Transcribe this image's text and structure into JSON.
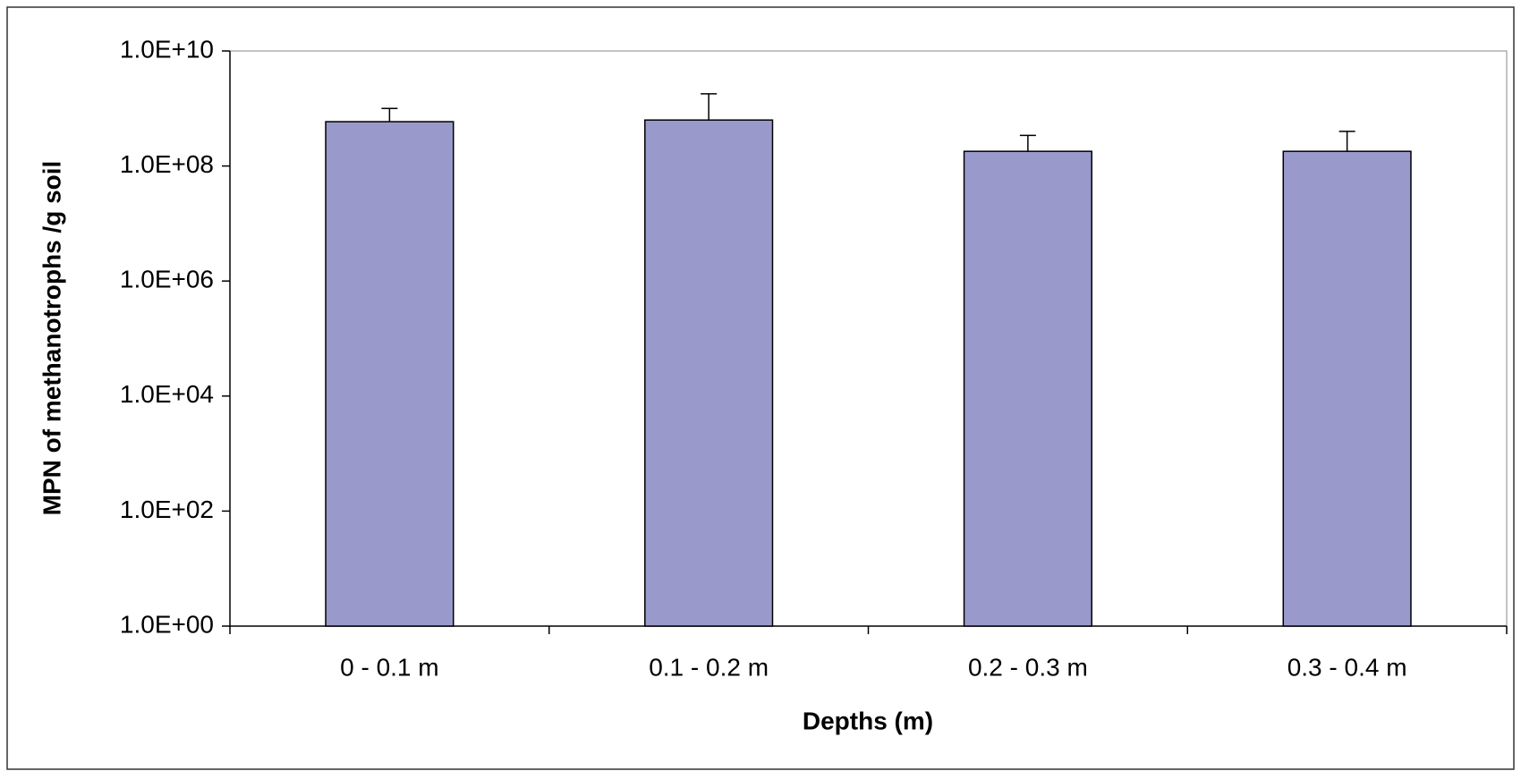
{
  "chart_data": {
    "type": "bar",
    "x_label": "Depths (m)",
    "y_label": "MPN of methanotrophs /g soil",
    "categories": [
      "0 - 0.1 m",
      "0.1 - 0.2 m",
      "0.2 - 0.3 m",
      "0.3 - 0.4 m"
    ],
    "values": [
      590000000,
      630000000,
      180000000,
      180000000
    ],
    "errors": [
      410000000,
      1170000000,
      160000000,
      220000000
    ],
    "color": "#9999cc",
    "ylog": true,
    "ylim": [
      1,
      10000000000
    ],
    "yticks": [
      {
        "value": 1,
        "label": "1.0E+00"
      },
      {
        "value": 100,
        "label": "1.0E+02"
      },
      {
        "value": 10000,
        "label": "1.0E+04"
      },
      {
        "value": 1000000,
        "label": "1.0E+06"
      },
      {
        "value": 100000000,
        "label": "1.0E+08"
      },
      {
        "value": 10000000000,
        "label": "1.0E+10"
      }
    ]
  }
}
